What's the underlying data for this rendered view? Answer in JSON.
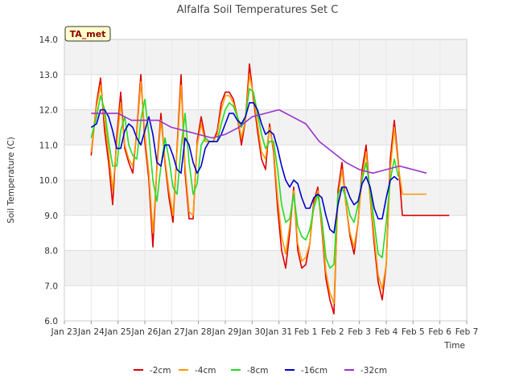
{
  "chart_data": {
    "type": "line",
    "title": "Alfalfa Soil Temperatures Set C",
    "xlabel": "Time",
    "ylabel": "Soil Temperature (C)",
    "badge": "TA_met",
    "ylim": [
      6.0,
      14.0
    ],
    "yticks": [
      "6.0",
      "7.0",
      "8.0",
      "9.0",
      "10.0",
      "11.0",
      "12.0",
      "13.0",
      "14.0"
    ],
    "xlim": [
      0,
      15
    ],
    "xtick_labels": [
      "Jan 23",
      "Jan 24",
      "Jan 25",
      "Jan 26",
      "Jan 27",
      "Jan 28",
      "Jan 29",
      "Jan 30",
      "Jan 31",
      "Feb 1",
      "Feb 2",
      "Feb 3",
      "Feb 4",
      "Feb 5",
      "Feb 6",
      "Feb 7"
    ],
    "legend_position": "bottom",
    "grid": true,
    "series": [
      {
        "name": "-2cm",
        "color": "#dd0000",
        "x": [
          1.0,
          1.2,
          1.35,
          1.5,
          1.65,
          1.8,
          1.95,
          2.1,
          2.25,
          2.4,
          2.55,
          2.7,
          2.85,
          3.0,
          3.15,
          3.3,
          3.45,
          3.6,
          3.75,
          3.9,
          4.05,
          4.2,
          4.35,
          4.5,
          4.65,
          4.8,
          4.95,
          5.1,
          5.25,
          5.4,
          5.55,
          5.7,
          5.85,
          6.0,
          6.15,
          6.3,
          6.45,
          6.6,
          6.75,
          6.9,
          7.05,
          7.2,
          7.35,
          7.5,
          7.65,
          7.8,
          7.95,
          8.1,
          8.25,
          8.4,
          8.55,
          8.7,
          8.85,
          9.0,
          9.15,
          9.3,
          9.45,
          9.6,
          9.75,
          9.9,
          10.05,
          10.2,
          10.35,
          10.5,
          10.65,
          10.8,
          10.95,
          11.1,
          11.25,
          11.4,
          11.55,
          11.7,
          11.85,
          12.0,
          12.15,
          12.3,
          12.45,
          12.6,
          12.75,
          12.9,
          13.05,
          13.2,
          13.35,
          13.5,
          13.65,
          13.8,
          13.95,
          14.1,
          14.25,
          14.35
        ],
        "values": [
          10.7,
          12.2,
          12.9,
          11.4,
          10.5,
          9.3,
          11.2,
          12.5,
          10.9,
          10.5,
          10.2,
          11.4,
          13.0,
          11.1,
          10.0,
          8.1,
          10.4,
          11.9,
          10.5,
          9.5,
          8.8,
          10.9,
          13.0,
          10.2,
          8.9,
          8.9,
          11.1,
          11.8,
          11.2,
          11.1,
          11.1,
          11.4,
          12.2,
          12.5,
          12.5,
          12.3,
          11.8,
          11.0,
          11.7,
          13.3,
          12.3,
          11.4,
          10.6,
          10.3,
          11.6,
          10.8,
          9.2,
          8.0,
          7.5,
          8.5,
          9.8,
          8.0,
          7.5,
          7.6,
          8.2,
          9.4,
          9.8,
          8.6,
          7.2,
          6.6,
          6.2,
          9.7,
          10.5,
          9.3,
          8.4,
          7.9,
          8.8,
          10.3,
          11.0,
          9.5,
          8.2,
          7.1,
          6.6,
          7.6,
          10.6,
          11.7,
          10.5,
          9.0,
          9.0,
          9.0,
          9.0,
          9.0,
          9.0,
          9.0,
          9.0,
          9.0,
          9.0,
          9.0,
          9.0,
          9.0
        ]
      },
      {
        "name": "-4cm",
        "color": "#ff9900",
        "x": [
          1.0,
          1.2,
          1.35,
          1.5,
          1.65,
          1.8,
          1.95,
          2.1,
          2.25,
          2.4,
          2.55,
          2.7,
          2.85,
          3.0,
          3.15,
          3.3,
          3.45,
          3.6,
          3.75,
          3.9,
          4.05,
          4.2,
          4.35,
          4.5,
          4.65,
          4.8,
          4.95,
          5.1,
          5.25,
          5.4,
          5.55,
          5.7,
          5.85,
          6.0,
          6.15,
          6.3,
          6.45,
          6.6,
          6.75,
          6.9,
          7.05,
          7.2,
          7.35,
          7.5,
          7.65,
          7.8,
          7.95,
          8.1,
          8.25,
          8.4,
          8.55,
          8.7,
          8.85,
          9.0,
          9.15,
          9.3,
          9.45,
          9.6,
          9.75,
          9.9,
          10.05,
          10.2,
          10.35,
          10.5,
          10.65,
          10.8,
          10.95,
          11.1,
          11.25,
          11.4,
          11.55,
          11.7,
          11.85,
          12.0,
          12.15,
          12.3,
          12.45,
          12.6,
          12.75,
          12.9,
          13.05,
          13.2,
          13.35,
          13.5
        ],
        "values": [
          10.8,
          12.1,
          12.7,
          11.7,
          10.8,
          9.7,
          11.0,
          12.2,
          11.0,
          10.6,
          10.4,
          11.3,
          12.8,
          11.3,
          10.2,
          8.5,
          10.3,
          11.7,
          10.6,
          9.7,
          9.0,
          10.8,
          12.7,
          10.4,
          9.1,
          9.0,
          11.0,
          11.6,
          11.1,
          11.1,
          11.1,
          11.3,
          12.0,
          12.4,
          12.4,
          12.2,
          11.8,
          11.2,
          11.7,
          13.0,
          12.4,
          11.6,
          10.8,
          10.6,
          11.5,
          10.9,
          9.5,
          8.4,
          7.9,
          8.7,
          9.7,
          8.2,
          7.7,
          7.8,
          8.2,
          9.3,
          9.7,
          8.7,
          7.4,
          6.8,
          6.5,
          9.5,
          10.3,
          9.3,
          8.5,
          8.1,
          8.8,
          10.1,
          10.8,
          9.5,
          8.4,
          7.3,
          6.9,
          7.6,
          10.3,
          11.5,
          10.4,
          9.6,
          9.6,
          9.6,
          9.6,
          9.6,
          9.6,
          9.6
        ]
      },
      {
        "name": "-8cm",
        "color": "#22dd22",
        "x": [
          1.0,
          1.2,
          1.35,
          1.5,
          1.65,
          1.8,
          1.95,
          2.1,
          2.25,
          2.4,
          2.55,
          2.7,
          2.85,
          3.0,
          3.15,
          3.3,
          3.45,
          3.6,
          3.75,
          3.9,
          4.05,
          4.2,
          4.35,
          4.5,
          4.65,
          4.8,
          4.95,
          5.1,
          5.25,
          5.4,
          5.55,
          5.7,
          5.85,
          6.0,
          6.15,
          6.3,
          6.45,
          6.6,
          6.75,
          6.9,
          7.05,
          7.2,
          7.35,
          7.5,
          7.65,
          7.8,
          7.95,
          8.1,
          8.25,
          8.4,
          8.55,
          8.7,
          8.85,
          9.0,
          9.15,
          9.3,
          9.45,
          9.6,
          9.75,
          9.9,
          10.05,
          10.2,
          10.35,
          10.5,
          10.65,
          10.8,
          10.95,
          11.1,
          11.25,
          11.4,
          11.55,
          11.7,
          11.85,
          12.0,
          12.15,
          12.3,
          12.45
        ],
        "values": [
          11.2,
          11.8,
          12.4,
          12.0,
          11.1,
          10.4,
          10.4,
          11.4,
          11.8,
          11.0,
          10.7,
          10.6,
          11.7,
          12.3,
          11.3,
          10.0,
          9.4,
          10.4,
          11.2,
          10.6,
          9.8,
          9.6,
          10.9,
          11.9,
          10.5,
          9.6,
          9.9,
          11.0,
          11.2,
          11.1,
          11.1,
          11.1,
          11.6,
          12.0,
          12.2,
          12.1,
          11.8,
          11.5,
          11.8,
          12.6,
          12.5,
          11.9,
          11.3,
          10.9,
          11.1,
          11.1,
          10.3,
          9.3,
          8.8,
          8.9,
          9.6,
          8.7,
          8.4,
          8.3,
          8.6,
          9.2,
          9.6,
          8.9,
          7.8,
          7.5,
          7.6,
          9.6,
          9.8,
          9.5,
          9.0,
          8.8,
          9.3,
          10.0,
          10.5,
          9.7,
          8.8,
          7.9,
          7.8,
          8.8,
          10.0,
          10.6,
          10.1
        ]
      },
      {
        "name": "-16cm",
        "color": "#0000cc",
        "x": [
          1.0,
          1.2,
          1.35,
          1.5,
          1.65,
          1.8,
          1.95,
          2.1,
          2.25,
          2.4,
          2.55,
          2.7,
          2.85,
          3.0,
          3.15,
          3.3,
          3.45,
          3.6,
          3.75,
          3.9,
          4.05,
          4.2,
          4.35,
          4.5,
          4.65,
          4.8,
          4.95,
          5.1,
          5.25,
          5.4,
          5.55,
          5.7,
          5.85,
          6.0,
          6.15,
          6.3,
          6.45,
          6.6,
          6.75,
          6.9,
          7.05,
          7.2,
          7.35,
          7.5,
          7.65,
          7.8,
          7.95,
          8.1,
          8.25,
          8.4,
          8.55,
          8.7,
          8.85,
          9.0,
          9.15,
          9.3,
          9.45,
          9.6,
          9.75,
          9.9,
          10.05,
          10.2,
          10.35,
          10.5,
          10.65,
          10.8,
          10.95,
          11.1,
          11.25,
          11.4,
          11.55,
          11.7,
          11.85,
          12.0,
          12.15,
          12.3,
          12.45
        ],
        "values": [
          11.5,
          11.6,
          12.0,
          12.0,
          11.8,
          11.4,
          10.9,
          10.9,
          11.4,
          11.6,
          11.5,
          11.2,
          11.0,
          11.4,
          11.8,
          11.3,
          10.5,
          10.4,
          11.0,
          11.0,
          10.7,
          10.3,
          10.2,
          11.2,
          11.0,
          10.5,
          10.2,
          10.4,
          10.9,
          11.1,
          11.1,
          11.1,
          11.3,
          11.6,
          11.9,
          11.9,
          11.7,
          11.6,
          11.8,
          12.2,
          12.2,
          12.0,
          11.6,
          11.3,
          11.4,
          11.3,
          10.9,
          10.4,
          10.0,
          9.8,
          10.0,
          9.9,
          9.5,
          9.2,
          9.2,
          9.5,
          9.6,
          9.5,
          9.0,
          8.6,
          8.5,
          9.3,
          9.8,
          9.8,
          9.5,
          9.3,
          9.4,
          9.9,
          10.1,
          9.8,
          9.2,
          8.9,
          8.9,
          9.5,
          10.0,
          10.1,
          10.0
        ]
      },
      {
        "name": "-32cm",
        "color": "#9933cc",
        "x": [
          1.0,
          1.5,
          2.0,
          2.5,
          3.0,
          3.5,
          4.0,
          4.5,
          5.0,
          5.5,
          6.0,
          6.5,
          7.0,
          7.5,
          8.0,
          8.5,
          9.0,
          9.5,
          10.0,
          10.5,
          11.0,
          11.5,
          12.0,
          12.5,
          13.0,
          13.5
        ],
        "values": [
          11.9,
          11.9,
          11.9,
          11.7,
          11.7,
          11.7,
          11.5,
          11.4,
          11.3,
          11.2,
          11.3,
          11.5,
          11.8,
          11.9,
          12.0,
          11.8,
          11.6,
          11.1,
          10.8,
          10.5,
          10.3,
          10.2,
          10.3,
          10.4,
          10.3,
          10.2
        ]
      }
    ]
  }
}
